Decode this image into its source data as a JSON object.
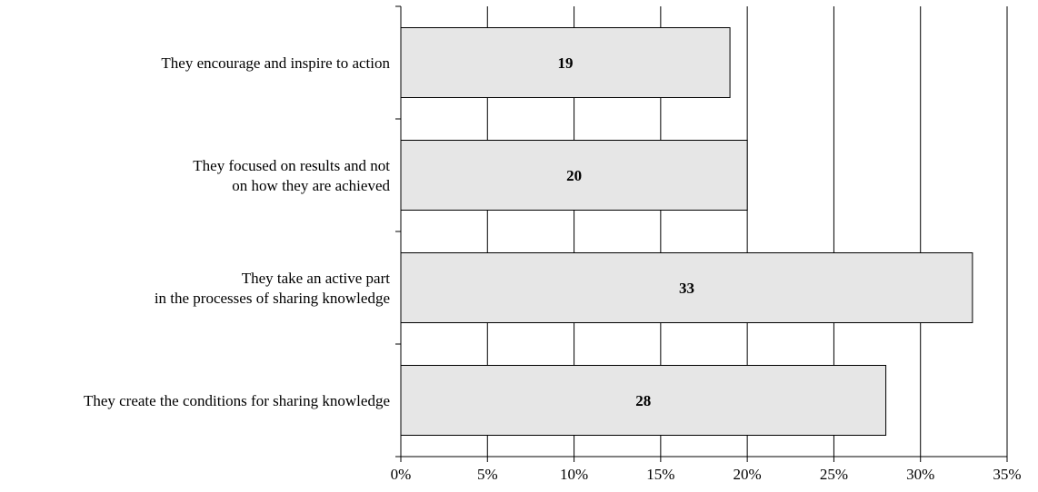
{
  "chart_data": {
    "type": "bar",
    "orientation": "horizontal",
    "categories": [
      [
        "They encourage and inspire to action"
      ],
      [
        "They focused on results and not",
        "on how they are achieved"
      ],
      [
        "They take an active part",
        "in the processes of sharing knowledge"
      ],
      [
        "They create the conditions for sharing knowledge"
      ]
    ],
    "values": [
      19,
      20,
      33,
      28
    ],
    "data_labels": [
      "19",
      "20",
      "33",
      "28"
    ],
    "x_ticks": [
      "0%",
      "5%",
      "10%",
      "15%",
      "20%",
      "25%",
      "30%",
      "35%"
    ],
    "xlim": [
      0,
      35
    ],
    "grid": true,
    "colors": {
      "bar_fill": "#e6e6e6",
      "bar_stroke": "#000000",
      "grid": "#000000"
    }
  }
}
